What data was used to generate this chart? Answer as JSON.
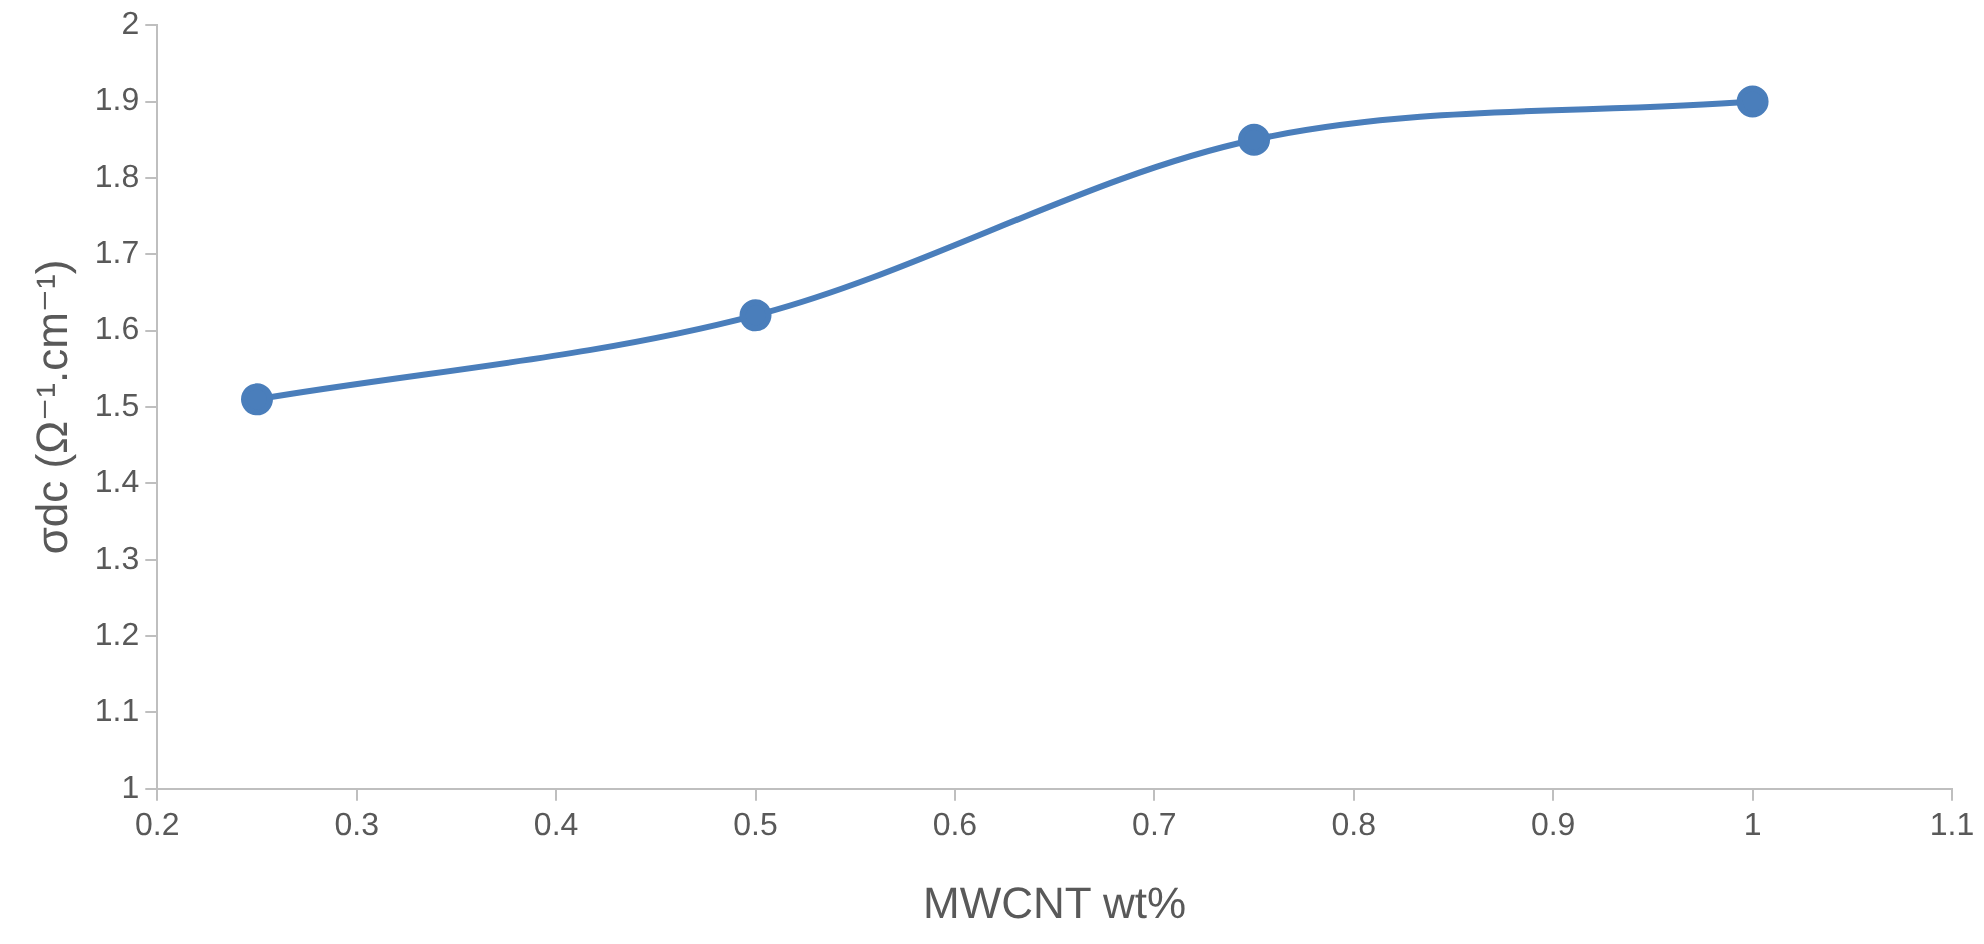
{
  "chart_data": {
    "type": "line",
    "xlabel": "MWCNT wt%",
    "ylabel": "σdc (Ω⁻¹.cm⁻¹)",
    "x": [
      0.25,
      0.5,
      0.75,
      1
    ],
    "series": [
      {
        "color": "#4a7ebb",
        "values": [
          1.51,
          1.62,
          1.85,
          1.9
        ]
      }
    ],
    "xlim": [
      0.2,
      1.1
    ],
    "xticks": [
      0.2,
      0.3,
      0.4,
      0.5,
      0.6,
      0.7,
      0.8,
      0.9,
      1,
      1.1
    ],
    "ylim": [
      1,
      2
    ],
    "yticks": [
      1,
      1.1,
      1.2,
      1.3,
      1.4,
      1.5,
      1.6,
      1.7,
      1.8,
      1.9,
      2
    ],
    "grid": false,
    "legend": false,
    "marker": "circle",
    "line_style": "solid"
  }
}
